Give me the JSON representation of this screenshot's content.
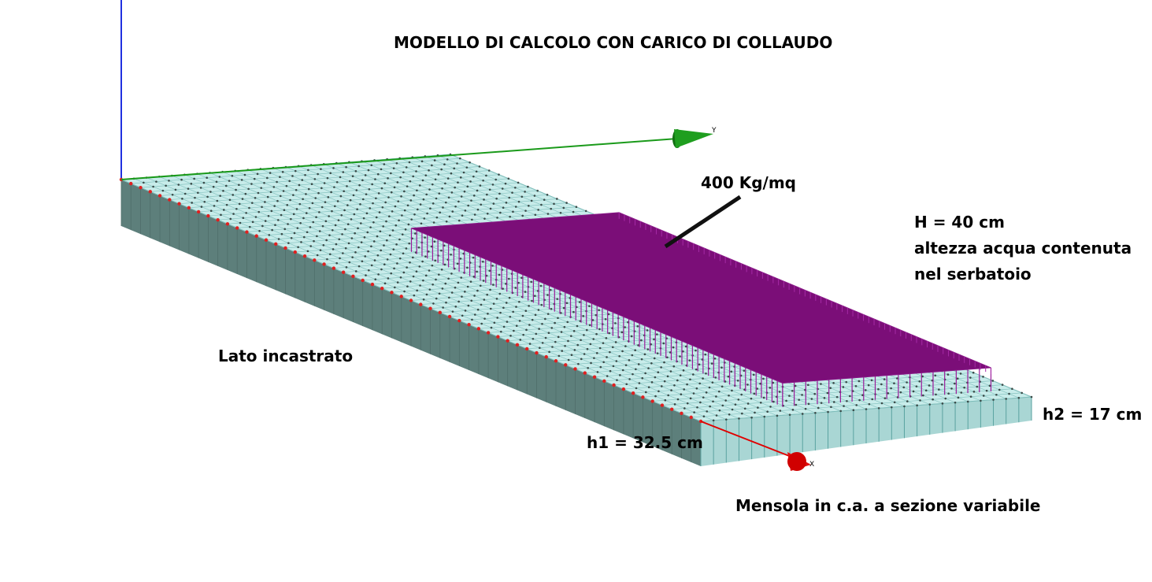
{
  "title": "MODELLO DI CALCOLO CON CARICO DI COLLAUDO",
  "load_label": "400 Kg/mq",
  "water_note": {
    "line1": "H = 40 cm",
    "line2": "altezza acqua contenuta",
    "line3": "nel serbatoio"
  },
  "fixed_side_label": "Lato incastrato",
  "h1_label": "h1 = 32.5 cm",
  "h2_label": "h2 = 17 cm",
  "beam_label": "Mensola in c.a. a sezione variabile",
  "axes": {
    "x": "X",
    "y": "Y"
  },
  "colors": {
    "slab_top": "#c8ecea",
    "slab_side": "#a9d6d4",
    "slab_dark_side": "#5d7f7b",
    "load": "#7b0e78",
    "load_lines": "#9a1a9a",
    "support_nodes": "#e02020",
    "x_axis": "#e00000",
    "y_axis": "#1a9a1a",
    "z_axis": "#2030e0"
  }
}
